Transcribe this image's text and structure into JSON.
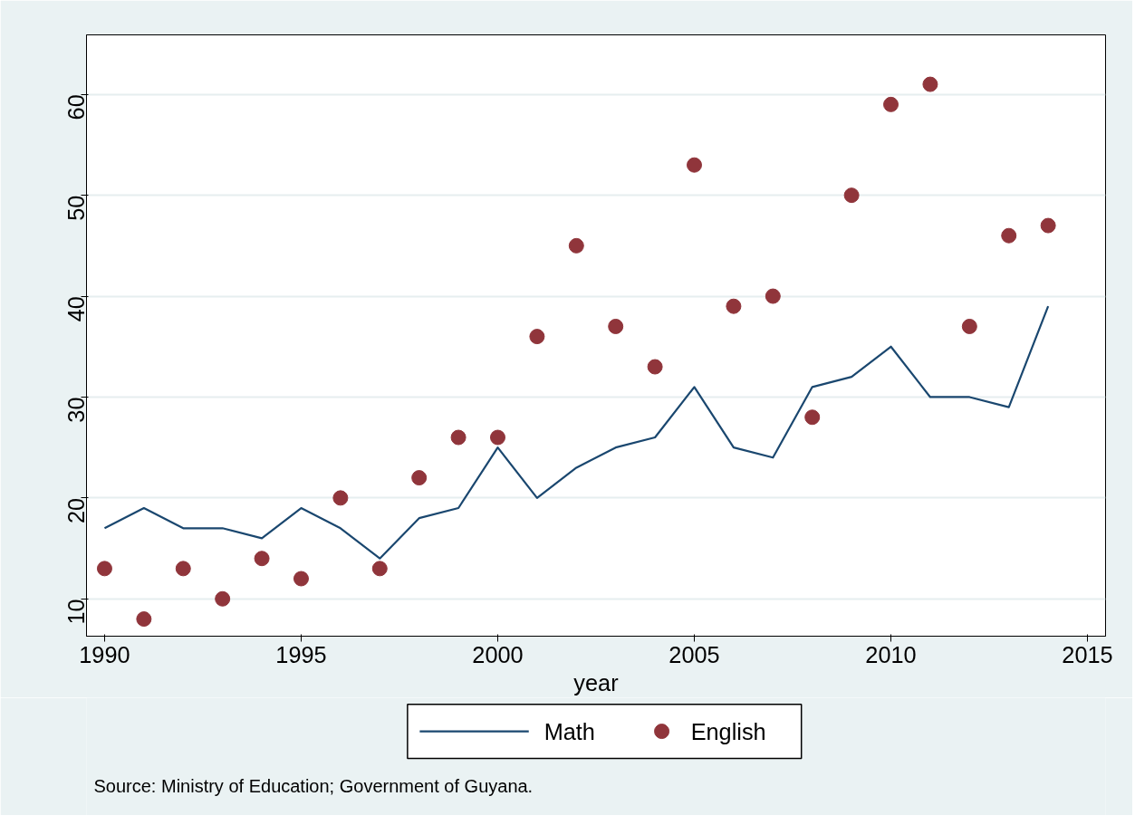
{
  "chart_data": {
    "type": "line",
    "xlabel": "year",
    "x": [
      1990,
      1991,
      1992,
      1993,
      1994,
      1995,
      1996,
      1997,
      1998,
      1999,
      2000,
      2001,
      2002,
      2003,
      2004,
      2005,
      2006,
      2007,
      2008,
      2009,
      2010,
      2011,
      2012,
      2013,
      2014
    ],
    "series": [
      {
        "name": "Math",
        "color": "#1a476f",
        "values": [
          17,
          19,
          17,
          17,
          16,
          19,
          17,
          14,
          18,
          19,
          25,
          20,
          23,
          25,
          26,
          31,
          25,
          24,
          31,
          32,
          35,
          30,
          30,
          29,
          39
        ]
      },
      {
        "name": "English",
        "type": "scatter",
        "marker": "circle",
        "color": "#90353b",
        "values": [
          13,
          8,
          13,
          10,
          14,
          12,
          20,
          13,
          22,
          26,
          26,
          36,
          45,
          37,
          33,
          53,
          39,
          40,
          28,
          50,
          59,
          61,
          37,
          46,
          47
        ]
      }
    ],
    "xlim": [
      1989.54,
      2015.46
    ],
    "ylim": [
      6.3,
      65.9
    ],
    "xticks": [
      1990,
      1995,
      2000,
      2005,
      2010,
      2015
    ],
    "yticks": [
      10,
      20,
      30,
      40,
      50,
      60
    ],
    "grid": "y",
    "legend": "bottom",
    "annotations": [
      "Source: Ministry of Education; Government of Guyana."
    ]
  }
}
